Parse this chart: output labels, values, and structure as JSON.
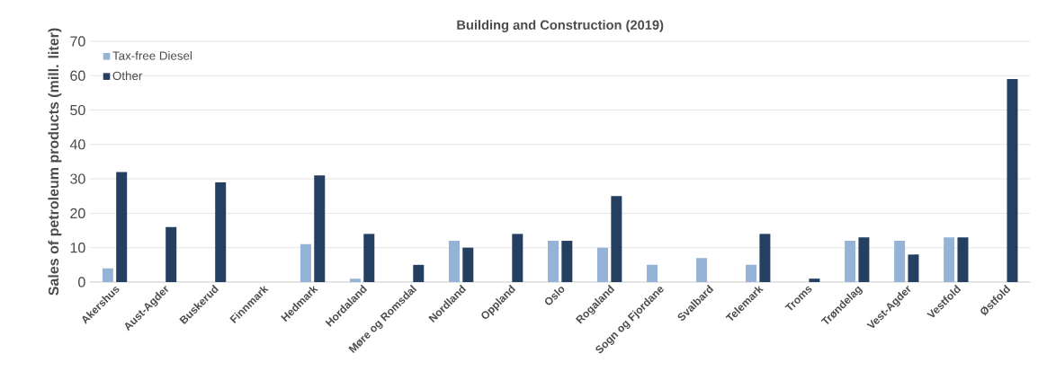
{
  "chart_data": {
    "type": "bar",
    "title": "Building and Construction (2019)",
    "ylabel": "Sales of petroleum products (mill. liter)",
    "categories": [
      "Akershus",
      "Aust-Agder",
      "Buskerud",
      "Finnmark",
      "Hedmark",
      "Hordaland",
      "Møre og Romsdal",
      "Nordland",
      "Oppland",
      "Oslo",
      "Rogaland",
      "Sogn og Fjordane",
      "Svalbard",
      "Telemark",
      "Troms",
      "Trøndelag",
      "Vest-Agder",
      "Vestfold",
      "Østfold"
    ],
    "series": [
      {
        "name": "Tax-free Diesel",
        "color": "#95b3d7",
        "values": [
          4,
          null,
          null,
          null,
          11,
          1,
          null,
          12,
          null,
          12,
          10,
          5,
          7,
          5,
          null,
          12,
          12,
          13,
          null
        ]
      },
      {
        "name": "Other",
        "color": "#243f60",
        "values": [
          32,
          16,
          29,
          null,
          31,
          14,
          5,
          10,
          14,
          12,
          25,
          null,
          null,
          14,
          1,
          13,
          8,
          13,
          59
        ]
      }
    ],
    "ylim": [
      0,
      70
    ],
    "yticks": [
      0,
      10,
      20,
      30,
      40,
      50,
      60,
      70
    ],
    "grid": "y",
    "legend": "top left"
  }
}
